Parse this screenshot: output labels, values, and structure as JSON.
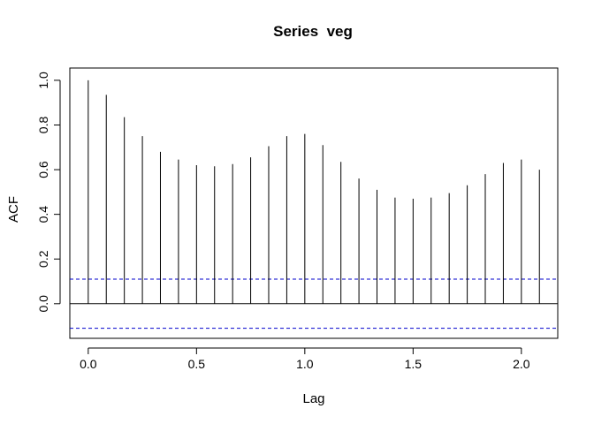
{
  "chart_data": {
    "type": "bar",
    "title": "Series  veg",
    "xlabel": "Lag",
    "ylabel": "ACF",
    "xlim": [
      -0.085,
      2.168
    ],
    "ylim": [
      -0.155,
      1.055
    ],
    "x_ticks": [
      0.0,
      0.5,
      1.0,
      1.5,
      2.0
    ],
    "x_tick_labels": [
      "0.0",
      "0.5",
      "1.0",
      "1.5",
      "2.0"
    ],
    "y_ticks": [
      0.0,
      0.2,
      0.4,
      0.6,
      0.8,
      1.0
    ],
    "y_tick_labels": [
      "0.0",
      "0.2",
      "0.4",
      "0.6",
      "0.8",
      "1.0"
    ],
    "grid": false,
    "zero_line": 0,
    "confidence_band": 0.11,
    "confidence_band_color": "#0000cc",
    "lags": [
      0.0,
      0.0833,
      0.1667,
      0.25,
      0.3333,
      0.4167,
      0.5,
      0.5833,
      0.6667,
      0.75,
      0.8333,
      0.9167,
      1.0,
      1.0833,
      1.1667,
      1.25,
      1.3333,
      1.4167,
      1.5,
      1.5833,
      1.6667,
      1.75,
      1.8333,
      1.9167,
      2.0,
      2.0833
    ],
    "acf": [
      1.0,
      0.935,
      0.835,
      0.75,
      0.68,
      0.645,
      0.62,
      0.615,
      0.625,
      0.655,
      0.705,
      0.75,
      0.76,
      0.71,
      0.635,
      0.56,
      0.51,
      0.475,
      0.47,
      0.475,
      0.495,
      0.53,
      0.58,
      0.63,
      0.645,
      0.6
    ]
  }
}
